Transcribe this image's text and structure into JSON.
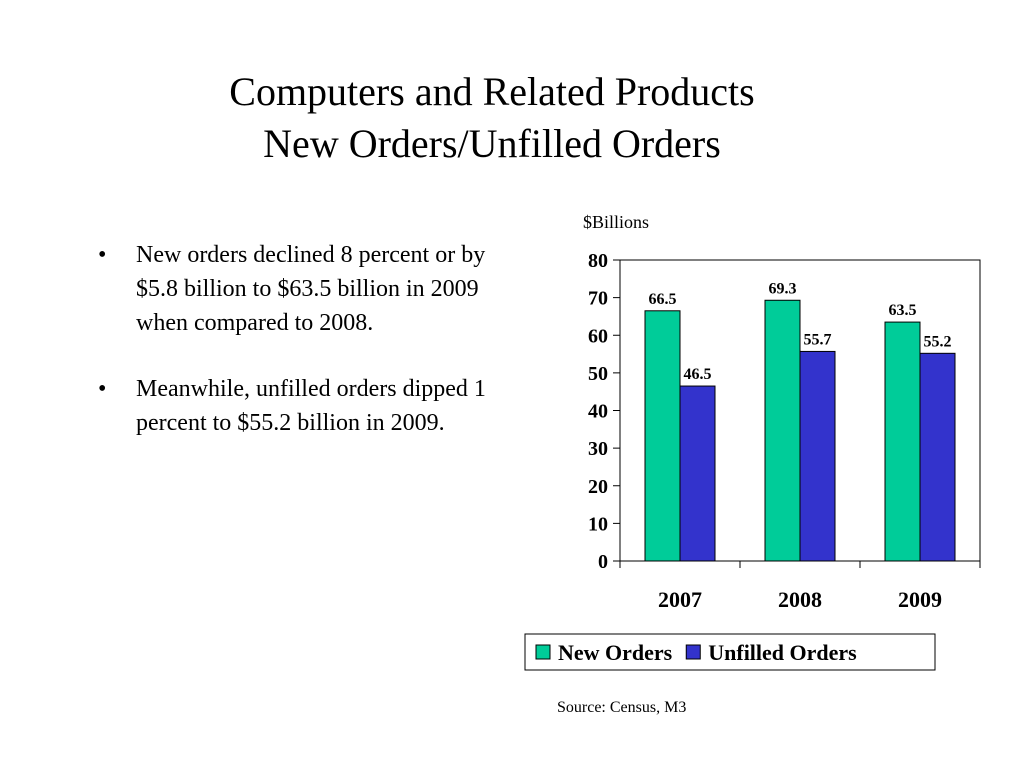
{
  "slide": {
    "title_line1": "Computers and Related Products",
    "title_line2": "New Orders/Unfilled Orders",
    "bullets": [
      "New orders declined 8 percent or by $5.8 billion to $63.5 billion in 2009 when compared to 2008.",
      "Meanwhile, unfilled orders dipped 1 percent to $55.2 billion in 2009."
    ],
    "bullet_glyph": "•",
    "source": "Source:  Census, M3"
  },
  "chart_data": {
    "type": "bar",
    "title": "",
    "unit_label": "$Billions",
    "xlabel": "",
    "ylabel": "",
    "categories": [
      "2007",
      "2008",
      "2009"
    ],
    "series": [
      {
        "name": "New Orders",
        "values": [
          66.5,
          69.3,
          63.5
        ],
        "color": "#00cc99"
      },
      {
        "name": "Unfilled Orders",
        "values": [
          46.5,
          55.7,
          55.2
        ],
        "color": "#3333cc"
      }
    ],
    "data_labels": [
      [
        "66.5",
        "69.3",
        "63.5"
      ],
      [
        "46.5",
        "55.7",
        "55.2"
      ]
    ],
    "ylim": [
      0,
      80
    ],
    "yticks": [
      0,
      10,
      20,
      30,
      40,
      50,
      60,
      70,
      80
    ],
    "grid": false,
    "legend_position": "bottom"
  }
}
